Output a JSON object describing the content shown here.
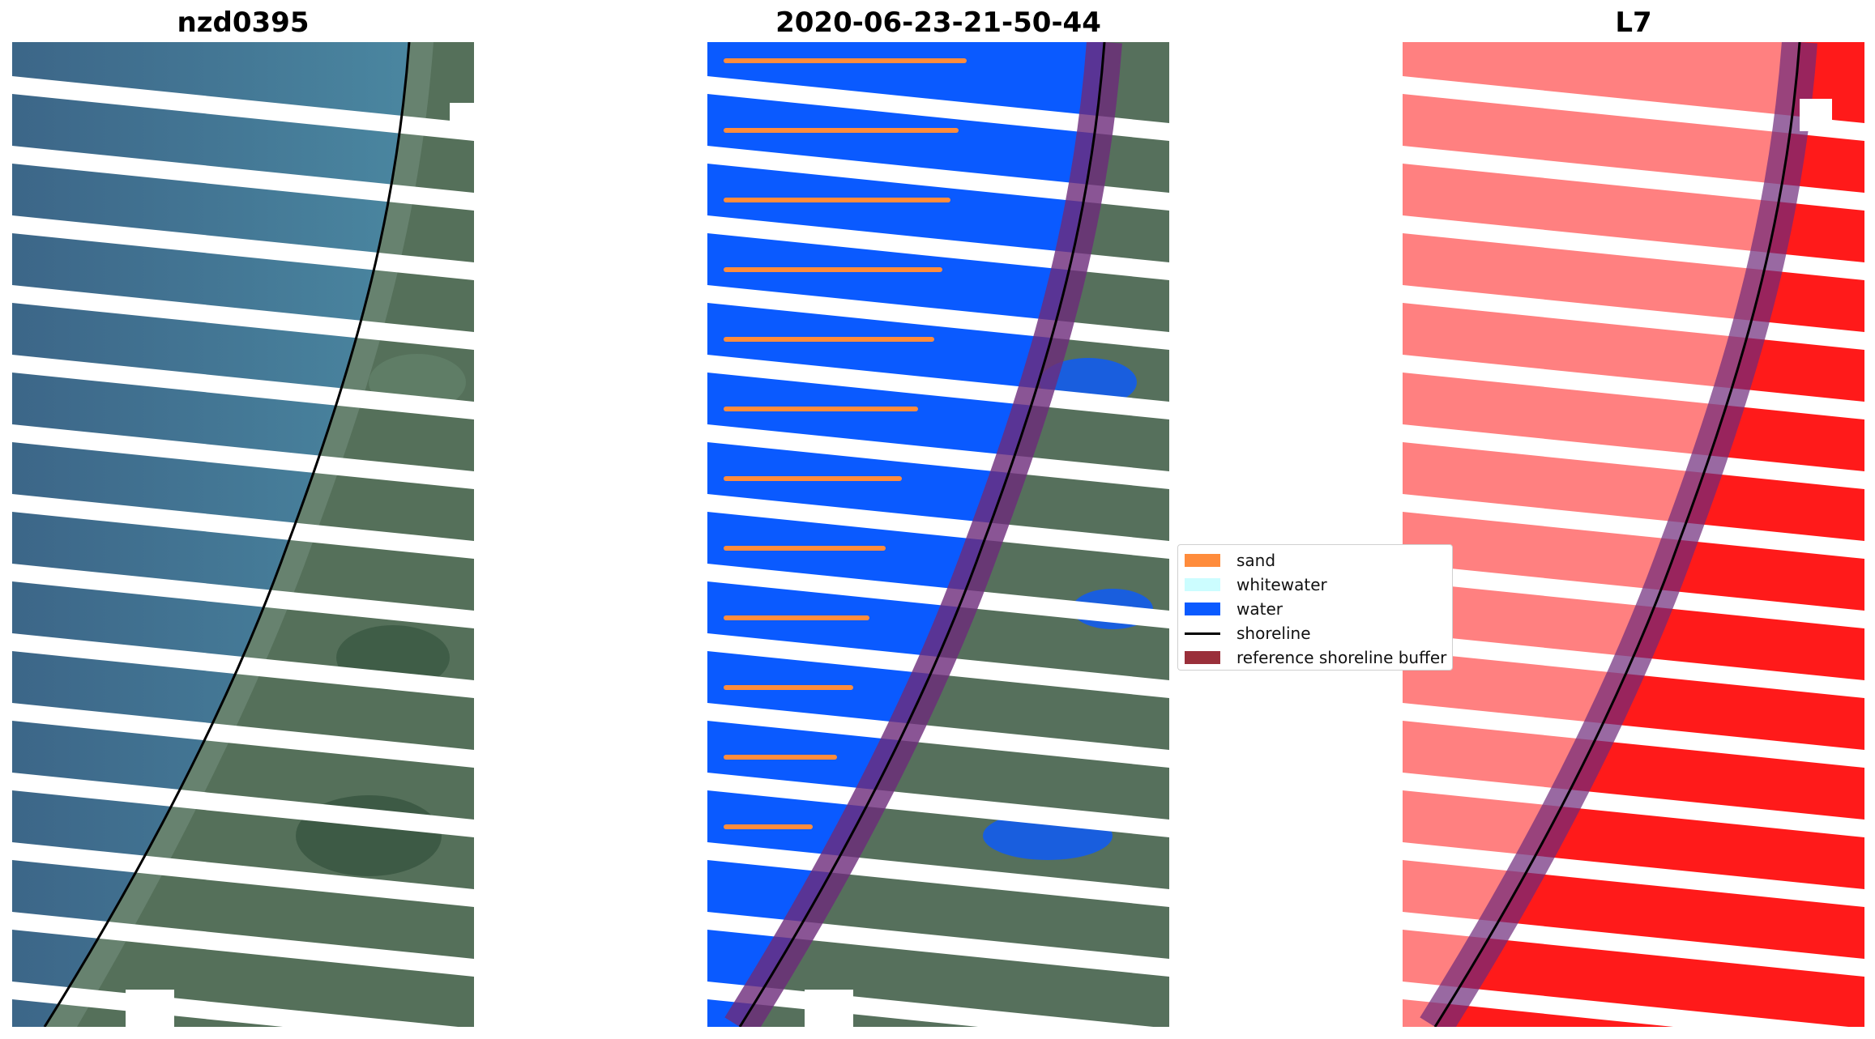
{
  "panels": [
    {
      "title": "nzd0395"
    },
    {
      "title": "2020-06-23-21-50-44"
    },
    {
      "title": "L7"
    }
  ],
  "legend": {
    "items": [
      {
        "label": "sand",
        "kind": "patch",
        "color": "#ff8c3c"
      },
      {
        "label": "whitewater",
        "kind": "patch",
        "color": "#ccfdff"
      },
      {
        "label": "water",
        "kind": "patch",
        "color": "#0a5aff"
      },
      {
        "label": "shoreline",
        "kind": "line",
        "color": "#000000"
      },
      {
        "label": "reference shoreline buffer",
        "kind": "patch",
        "color": "#9a2f3a"
      }
    ]
  },
  "colors": {
    "ocean": "#3f6f93",
    "land_green": "#4f6f55",
    "water_class": "#0a5aff",
    "sand_class": "#ff8c3c",
    "buffer": "#6d2a7a",
    "index_red": "#ff2020"
  }
}
